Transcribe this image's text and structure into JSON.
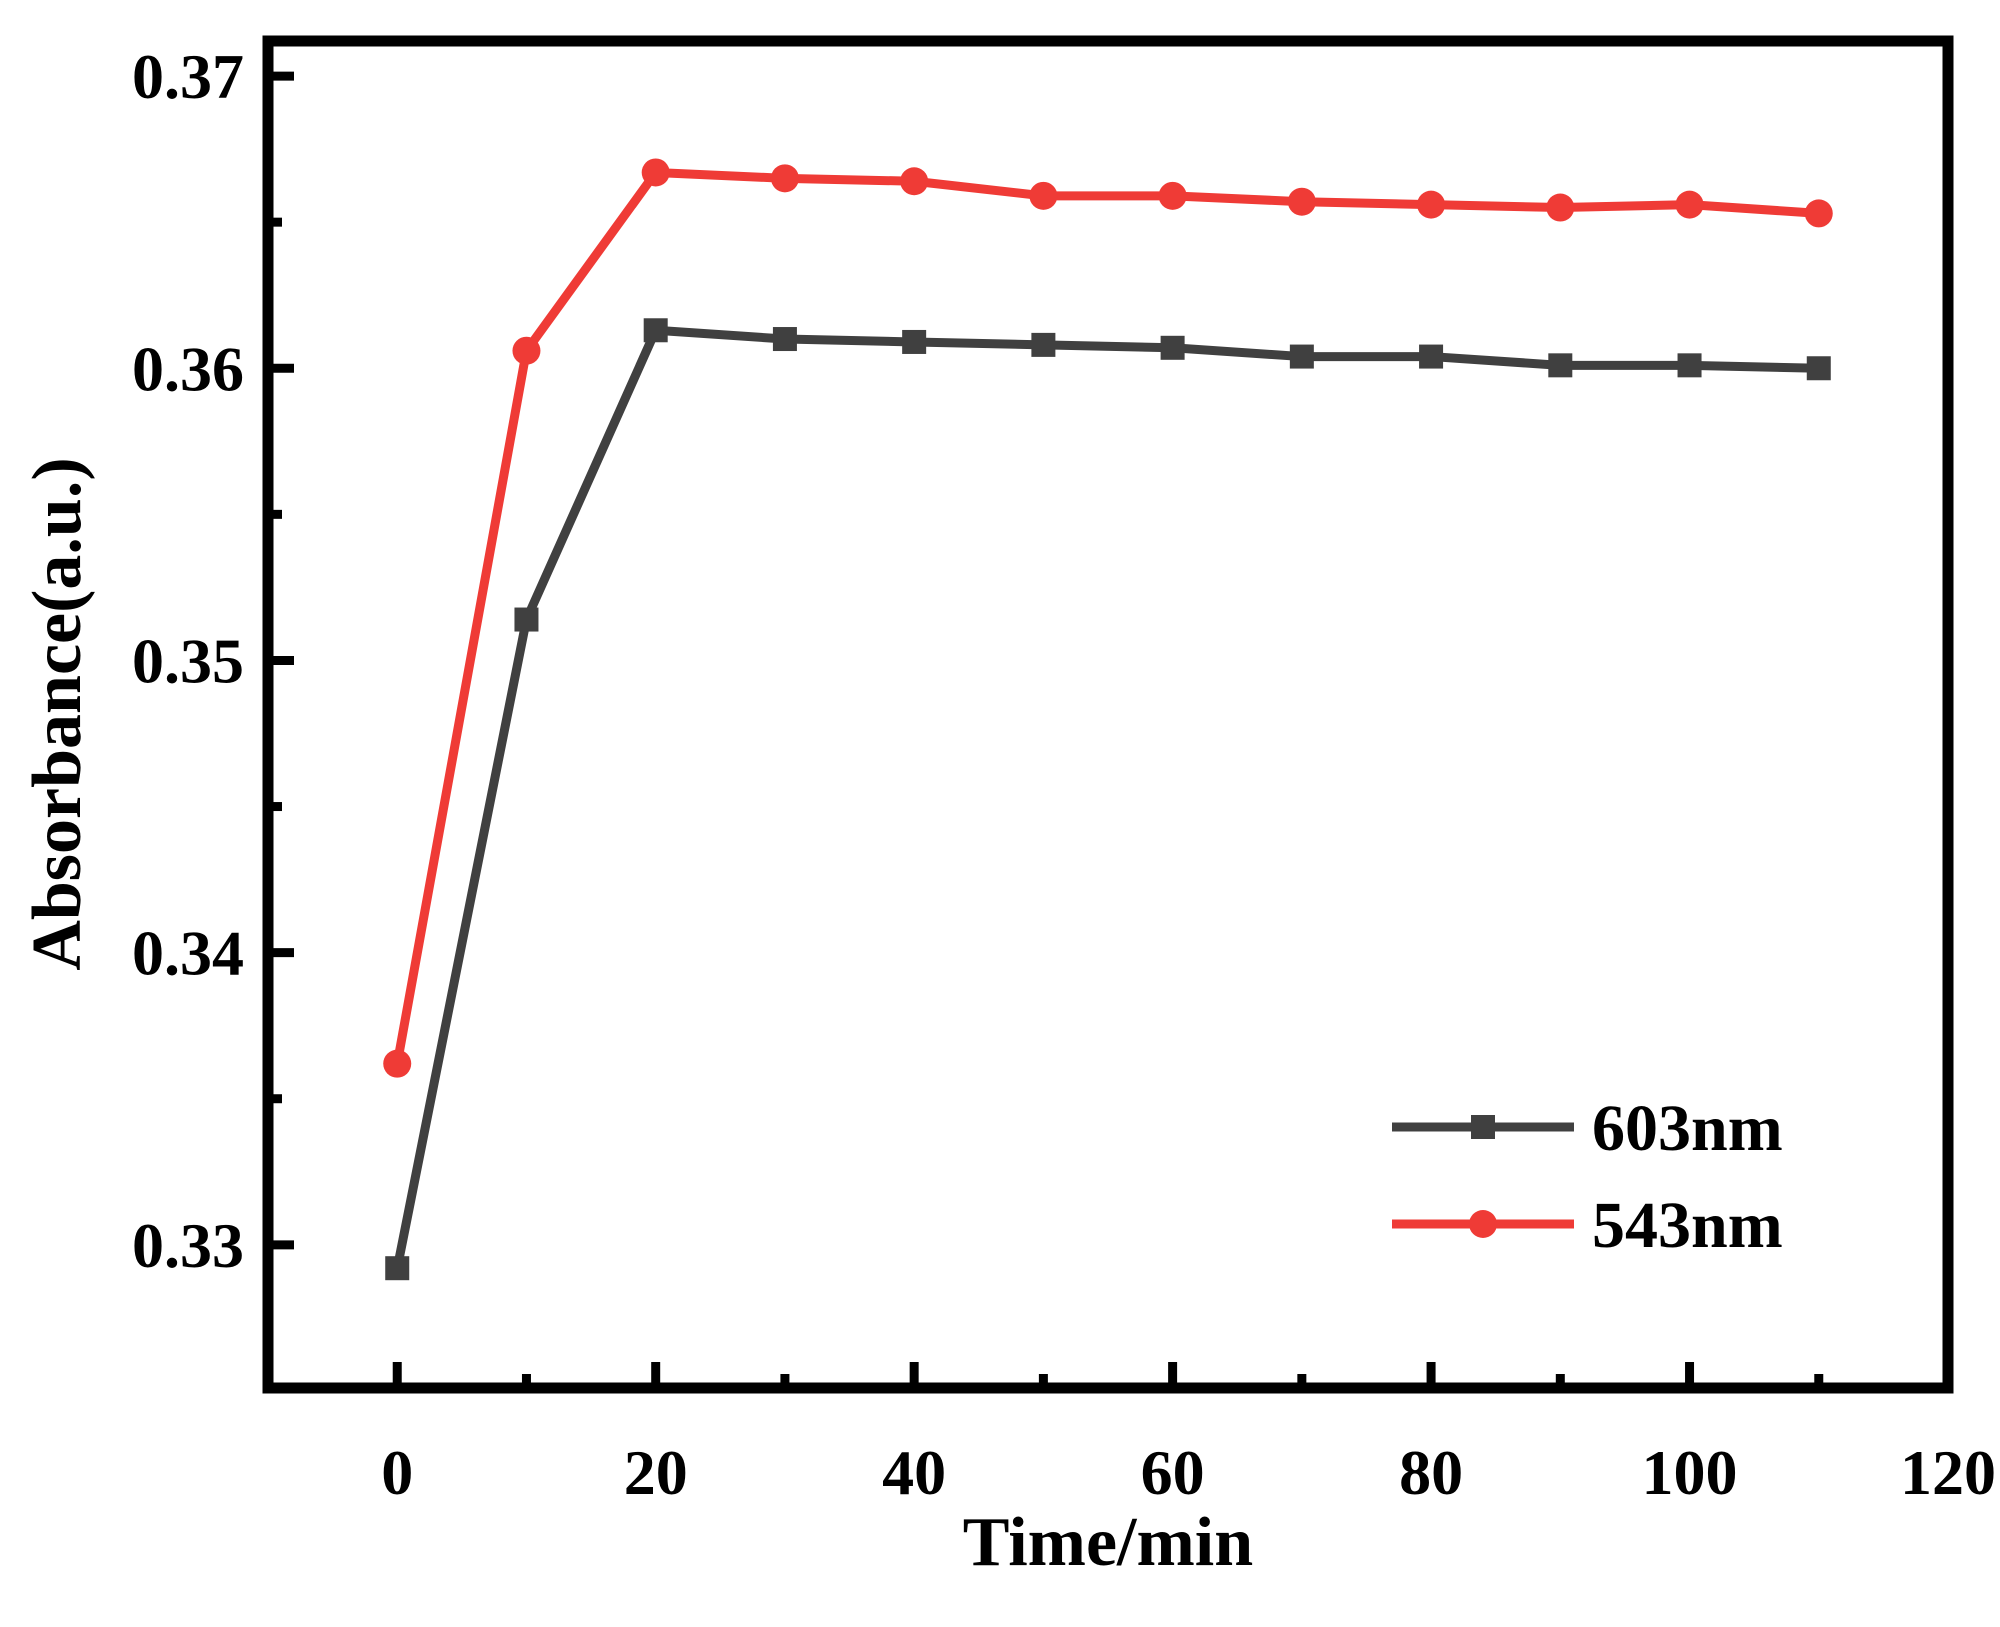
{
  "chart_data": {
    "type": "line",
    "title": "",
    "xlabel": "Time/min",
    "ylabel": "Absorbance(a.u.)",
    "xlim": [
      -10,
      120
    ],
    "ylim": [
      0.3251,
      0.3712
    ],
    "x_ticks": [
      0,
      20,
      40,
      60,
      80,
      100,
      120
    ],
    "x_tick_labels": [
      "0",
      "20",
      "40",
      "60",
      "80",
      "100",
      "120"
    ],
    "y_ticks": [
      0.33,
      0.34,
      0.35,
      0.36,
      0.37
    ],
    "y_tick_labels": [
      "0.33",
      "0.34",
      "0.35",
      "0.36",
      "0.37"
    ],
    "grid": false,
    "legend_position": "bottom-right",
    "x": [
      0,
      10,
      20,
      30,
      40,
      50,
      60,
      70,
      80,
      90,
      100,
      110
    ],
    "series": [
      {
        "name": "603nm",
        "color": "#404040",
        "marker": "square",
        "values": [
          0.3292,
          0.3514,
          0.3613,
          0.361,
          0.3609,
          0.3608,
          0.3607,
          0.3604,
          0.3604,
          0.3601,
          0.3601,
          0.36
        ]
      },
      {
        "name": "543nm",
        "color": "#ef3b36",
        "marker": "circle",
        "values": [
          0.3362,
          0.3606,
          0.3667,
          0.3665,
          0.3664,
          0.3659,
          0.3659,
          0.3657,
          0.3656,
          0.3655,
          0.3656,
          0.3653
        ]
      }
    ]
  }
}
